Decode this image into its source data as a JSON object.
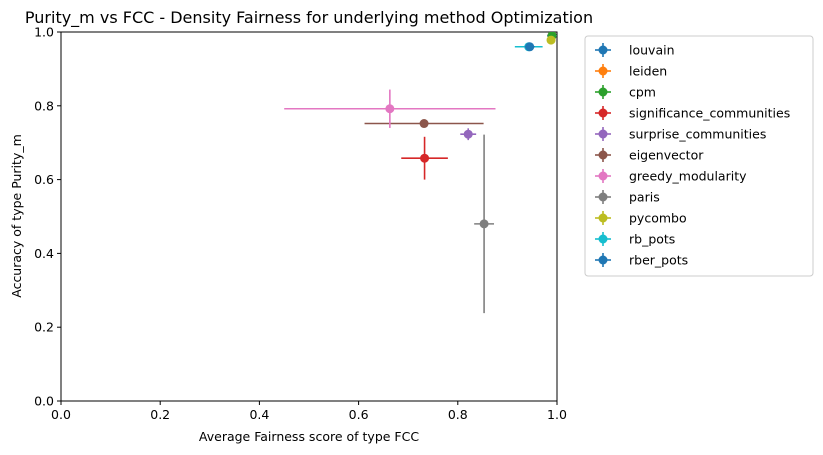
{
  "chart_data": {
    "type": "scatter",
    "title": "Purity_m vs FCC - Density Fairness for underlying method Optimization",
    "xlabel": "Average Fairness score of type FCC",
    "ylabel": "Accuracy of type Purity_m",
    "xlim": [
      0,
      1
    ],
    "ylim": [
      0,
      1
    ],
    "xticks": [
      "0.0",
      "0.2",
      "0.4",
      "0.6",
      "0.8",
      "1.0"
    ],
    "yticks": [
      "0.0",
      "0.2",
      "0.4",
      "0.6",
      "0.8",
      "1.0"
    ],
    "grid": false,
    "legend_position": "outside right",
    "series": [
      {
        "name": "louvain",
        "color": "#1f77b4",
        "x": 0.99,
        "y": 0.99,
        "xerr": 0.01,
        "yerr": 0.01
      },
      {
        "name": "leiden",
        "color": "#ff7f0e",
        "x": 0.99,
        "y": 0.99,
        "xerr": 0.005,
        "yerr": 0.005
      },
      {
        "name": "cpm",
        "color": "#2ca02c",
        "x": 0.99,
        "y": 0.99,
        "xerr": 0.005,
        "yerr": 0.005
      },
      {
        "name": "significance_communities",
        "color": "#d62728",
        "x": 0.733,
        "y": 0.658,
        "xerr": 0.047,
        "yerr": 0.058
      },
      {
        "name": "surprise_communities",
        "color": "#9467bd",
        "x": 0.821,
        "y": 0.723,
        "xerr": 0.016,
        "yerr": 0.016
      },
      {
        "name": "eigenvector",
        "color": "#8c564b",
        "x": 0.732,
        "y": 0.752,
        "xerr": 0.12,
        "yerr": 0.01
      },
      {
        "name": "greedy_modularity",
        "color": "#e377c2",
        "x": 0.663,
        "y": 0.792,
        "xerr": 0.213,
        "yerr": 0.052
      },
      {
        "name": "paris",
        "color": "#7f7f7f",
        "x": 0.853,
        "y": 0.48,
        "xerr": 0.02,
        "yerr": 0.242
      },
      {
        "name": "pycombo",
        "color": "#bcbd22",
        "x": 0.988,
        "y": 0.978,
        "xerr": 0.005,
        "yerr": 0.008
      },
      {
        "name": "rb_pots",
        "color": "#17becf",
        "x": 0.943,
        "y": 0.96,
        "xerr": 0.028,
        "yerr": 0.008
      },
      {
        "name": "rber_pots",
        "color": "#1f77b4",
        "x": 0.945,
        "y": 0.96,
        "xerr": 0.01,
        "yerr": 0.005
      }
    ]
  }
}
